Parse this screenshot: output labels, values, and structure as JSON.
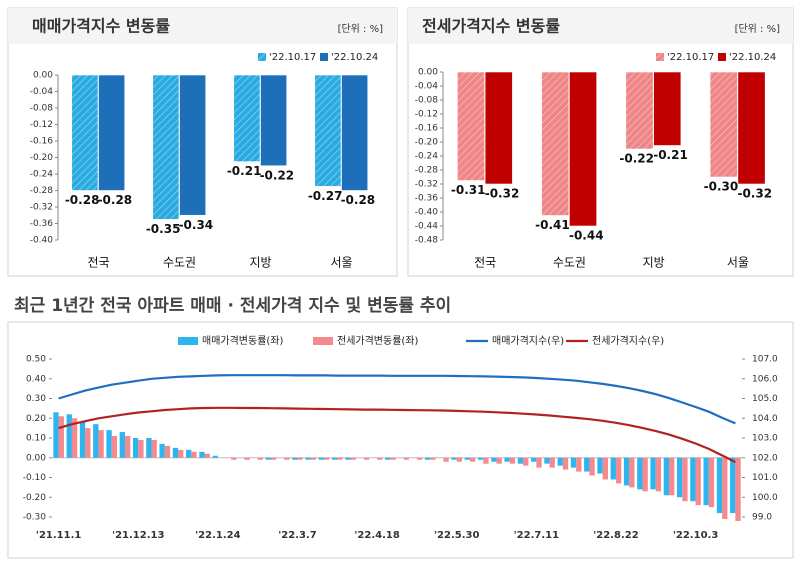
{
  "chart_data": [
    {
      "type": "bar",
      "title": "매매가격지수 변동률",
      "unit": "[단위 : %]",
      "legend": "top-right",
      "categories": [
        "전국",
        "수도권",
        "지방",
        "서울"
      ],
      "series": [
        {
          "name": "'22.10.17",
          "color": "#29abe2",
          "pattern": "hatch",
          "values": [
            -0.28,
            -0.35,
            -0.21,
            -0.27
          ]
        },
        {
          "name": "'22.10.24",
          "color": "#1c6fb8",
          "values": [
            -0.28,
            -0.34,
            -0.22,
            -0.28
          ]
        }
      ],
      "ylim": [
        -0.4,
        0
      ],
      "yticks": [
        {
          "value": -0.4,
          "label": "-0.40"
        },
        -0.36,
        -0.32,
        -0.28,
        -0.24,
        {
          "value": -0.2,
          "label": "-0.20"
        },
        -0.16,
        -0.12,
        -0.08,
        -0.04,
        {
          "value": 0,
          "label": "0.00"
        }
      ]
    },
    {
      "type": "bar",
      "title": "전세가격지수 변동률",
      "unit": "[단위 : %]",
      "legend": "top-right",
      "categories": [
        "전국",
        "수도권",
        "지방",
        "서울"
      ],
      "series": [
        {
          "name": "'22.10.17",
          "color": "#f08585",
          "pattern": "hatch",
          "values": [
            -0.31,
            -0.41,
            -0.22,
            -0.3
          ],
          "value_labels": [
            "-0.31",
            "-0.41",
            "-0.22",
            "-0.30"
          ]
        },
        {
          "name": "'22.10.24",
          "color": "#c00000",
          "values": [
            -0.32,
            -0.44,
            -0.21,
            -0.32
          ]
        }
      ],
      "ylim": [
        -0.48,
        0
      ],
      "yticks": [
        -0.48,
        -0.44,
        {
          "value": -0.4,
          "label": "-0.40"
        },
        -0.36,
        -0.32,
        -0.28,
        -0.24,
        {
          "value": -0.2,
          "label": "-0.20"
        },
        -0.16,
        -0.12,
        -0.08,
        -0.04,
        {
          "value": 0,
          "label": "0.00"
        }
      ]
    },
    {
      "type": "combo",
      "title": "최근 1년간 전국 아파트 매매 · 전세가격 지수 및 변동률 추이",
      "legend": "top",
      "categories": [
        "'21.11.1",
        null,
        null,
        null,
        null,
        null,
        "'21.12.13",
        null,
        null,
        null,
        null,
        null,
        "'22.1.24",
        null,
        null,
        null,
        null,
        null,
        "'22.3.7",
        null,
        null,
        null,
        null,
        null,
        "'22.4.18",
        null,
        null,
        null,
        null,
        null,
        "'22.5.30",
        null,
        null,
        null,
        null,
        null,
        "'22.7.11",
        null,
        null,
        null,
        null,
        null,
        "'22.8.22",
        null,
        null,
        null,
        null,
        null,
        "'22.10.3",
        null,
        null,
        null
      ],
      "series": [
        {
          "name": "매매가격변동률(좌)",
          "type": "bar",
          "color": "#2cb5ee",
          "values": [
            0.23,
            0.22,
            0.18,
            0.17,
            0.14,
            0.13,
            0.1,
            0.1,
            0.07,
            0.05,
            0.04,
            0.03,
            0.01,
            0.0,
            0.0,
            0.0,
            -0.01,
            0.0,
            -0.01,
            -0.01,
            -0.01,
            -0.01,
            -0.01,
            0.0,
            0.0,
            -0.01,
            0.0,
            0.0,
            -0.01,
            0.0,
            -0.01,
            -0.01,
            -0.01,
            -0.02,
            -0.02,
            -0.03,
            -0.02,
            -0.03,
            -0.04,
            -0.05,
            -0.07,
            -0.08,
            -0.11,
            -0.14,
            -0.16,
            -0.16,
            -0.19,
            -0.2,
            -0.22,
            -0.24,
            -0.28,
            -0.28
          ]
        },
        {
          "name": "전세가격변동률(좌)",
          "type": "bar",
          "color": "#f48a8e",
          "values": [
            0.21,
            0.2,
            0.15,
            0.14,
            0.11,
            0.11,
            0.09,
            0.09,
            0.06,
            0.04,
            0.03,
            0.02,
            0.0,
            -0.01,
            -0.01,
            -0.01,
            -0.01,
            -0.01,
            -0.01,
            -0.01,
            -0.01,
            -0.01,
            -0.01,
            -0.01,
            -0.01,
            -0.01,
            -0.01,
            -0.01,
            -0.01,
            -0.02,
            -0.02,
            -0.02,
            -0.03,
            -0.03,
            -0.03,
            -0.04,
            -0.05,
            -0.05,
            -0.06,
            -0.07,
            -0.09,
            -0.11,
            -0.13,
            -0.15,
            -0.17,
            -0.17,
            -0.19,
            -0.22,
            -0.24,
            -0.25,
            -0.31,
            -0.32
          ]
        },
        {
          "name": "매매가격지수(우)",
          "type": "line",
          "axis": "y2",
          "color": "#1f6fbf",
          "values": [
            105.0,
            105.2,
            105.4,
            105.55,
            105.7,
            105.8,
            105.9,
            106.0,
            106.05,
            106.1,
            106.12,
            106.15,
            106.17,
            106.18,
            106.18,
            106.18,
            106.18,
            106.18,
            106.17,
            106.17,
            106.17,
            106.16,
            106.16,
            106.16,
            106.16,
            106.15,
            106.15,
            106.15,
            106.15,
            106.15,
            106.14,
            106.13,
            106.12,
            106.11,
            106.09,
            106.07,
            106.04,
            106.0,
            105.95,
            105.9,
            105.82,
            105.74,
            105.64,
            105.52,
            105.38,
            105.22,
            105.02,
            104.8,
            104.57,
            104.33,
            104.03,
            103.74
          ]
        },
        {
          "name": "전세가격지수(우)",
          "type": "line",
          "axis": "y2",
          "color": "#b22222",
          "values": [
            103.5,
            103.7,
            103.85,
            104.0,
            104.1,
            104.2,
            104.29,
            104.35,
            104.42,
            104.46,
            104.5,
            104.52,
            104.53,
            104.53,
            104.52,
            104.52,
            104.51,
            104.5,
            104.49,
            104.48,
            104.47,
            104.46,
            104.45,
            104.44,
            104.44,
            104.43,
            104.42,
            104.41,
            104.4,
            104.39,
            104.37,
            104.35,
            104.33,
            104.3,
            104.27,
            104.23,
            104.19,
            104.14,
            104.08,
            104.02,
            103.95,
            103.87,
            103.77,
            103.65,
            103.51,
            103.35,
            103.17,
            102.96,
            102.72,
            102.45,
            102.12,
            101.78
          ]
        }
      ],
      "ylim": [
        -0.3,
        0.5
      ],
      "yticks": [
        {
          "value": -0.3,
          "label": "-0.30"
        },
        {
          "value": -0.2,
          "label": "-0.20"
        },
        {
          "value": -0.1,
          "label": "-0.10"
        },
        {
          "value": 0,
          "label": "0.00"
        },
        {
          "value": 0.1,
          "label": "0.10"
        },
        {
          "value": 0.2,
          "label": "0.20"
        },
        {
          "value": 0.3,
          "label": "0.30"
        },
        {
          "value": 0.4,
          "label": "0.40"
        },
        {
          "value": 0.5,
          "label": "0.50"
        }
      ],
      "y2lim": [
        99,
        107
      ],
      "y2ticks": [
        {
          "value": 99,
          "label": "99.0"
        },
        {
          "value": 100,
          "label": "100.0"
        },
        {
          "value": 101,
          "label": "101.0"
        },
        {
          "value": 102,
          "label": "102.0"
        },
        {
          "value": 103,
          "label": "103.0"
        },
        {
          "value": 104,
          "label": "104.0"
        },
        {
          "value": 105,
          "label": "105.0"
        },
        {
          "value": 106,
          "label": "106.0"
        },
        {
          "value": 107,
          "label": "107.0"
        }
      ]
    }
  ]
}
